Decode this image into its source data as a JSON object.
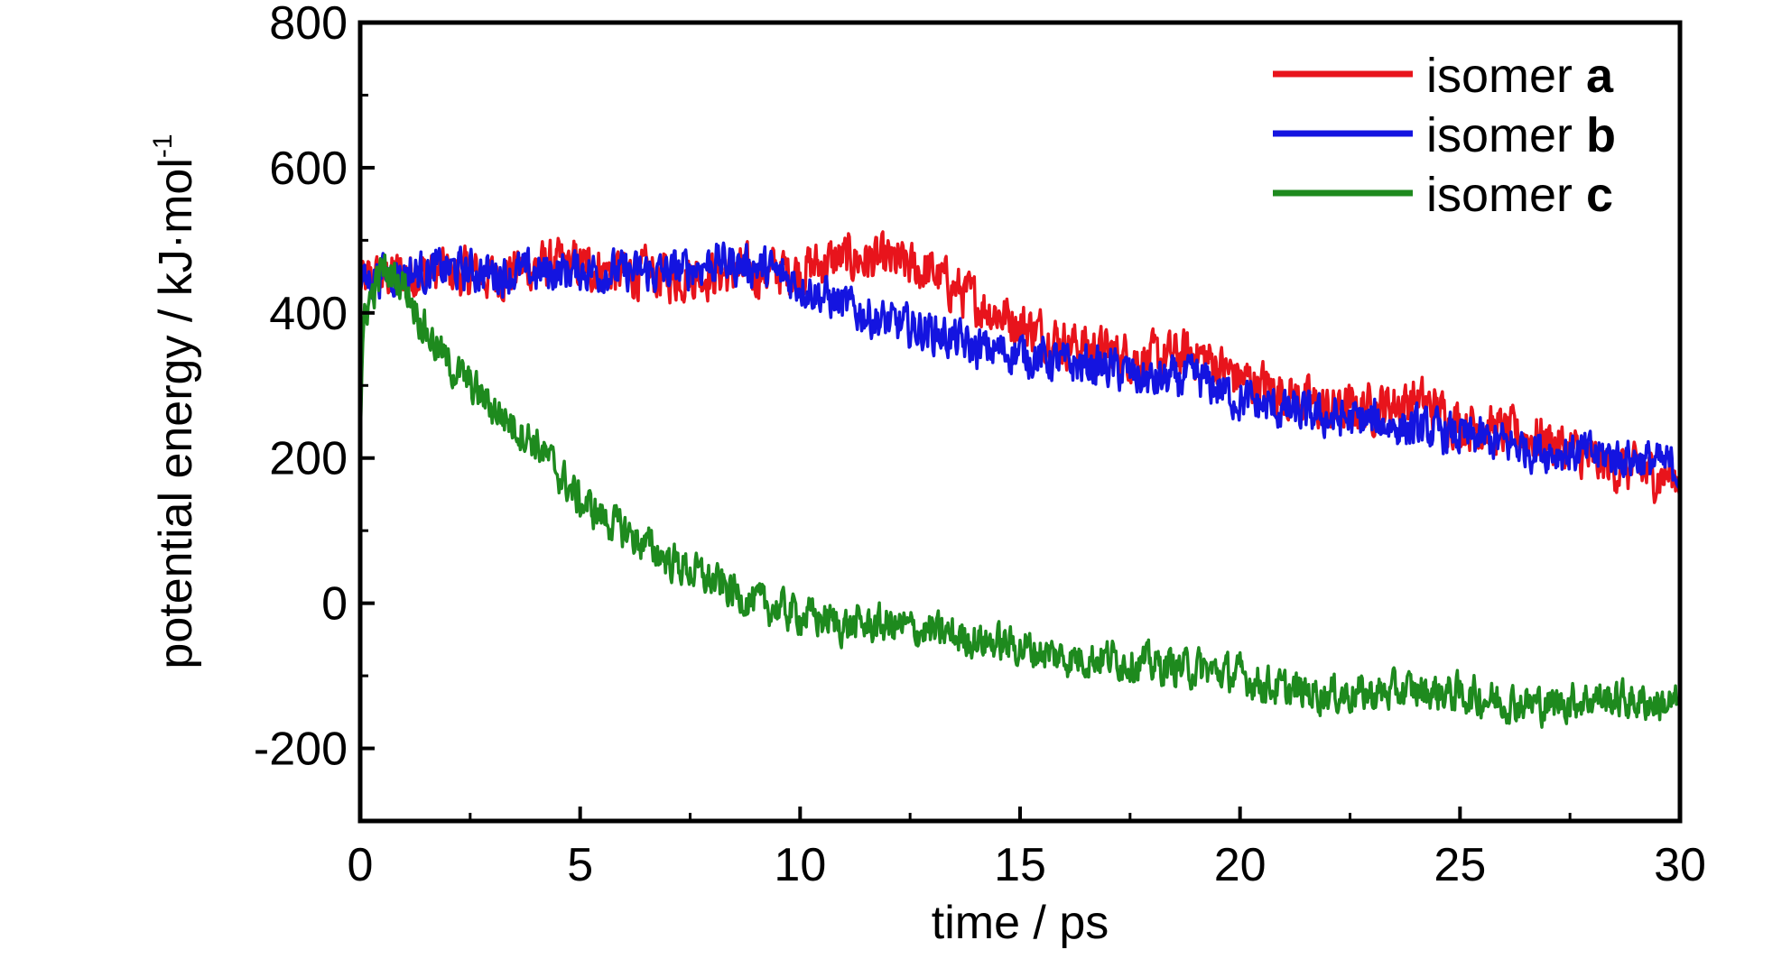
{
  "chart_data": {
    "type": "line",
    "title": "",
    "xlabel": "time / ps",
    "ylabel_main": "potential energy / kJ·mol",
    "ylabel_sup": "-1",
    "xlim": [
      0,
      30
    ],
    "ylim": [
      -300,
      800
    ],
    "xticks": [
      0,
      5,
      10,
      15,
      20,
      25,
      30
    ],
    "yticks": [
      -200,
      0,
      200,
      400,
      600,
      800
    ],
    "grid": false,
    "legend_position": "top-right",
    "series": [
      {
        "name": "isomer a",
        "name_prefix": "isomer ",
        "name_suffix": "a",
        "color": "#e8141c",
        "noise": 28,
        "x": [
          0,
          0.5,
          1,
          2,
          3,
          4,
          5,
          6,
          7,
          8,
          9,
          10,
          11,
          12,
          13,
          14,
          15,
          16,
          17,
          18,
          19,
          20,
          21,
          22,
          23,
          24,
          25,
          26,
          27,
          28,
          29,
          30
        ],
        "y": [
          440,
          450,
          455,
          455,
          450,
          465,
          465,
          455,
          450,
          455,
          455,
          460,
          475,
          470,
          455,
          415,
          385,
          360,
          345,
          335,
          345,
          310,
          290,
          265,
          270,
          280,
          250,
          235,
          225,
          195,
          180,
          175
        ]
      },
      {
        "name": "isomer b",
        "name_prefix": "isomer ",
        "name_suffix": "b",
        "color": "#1414e0",
        "noise": 24,
        "x": [
          0,
          0.5,
          1,
          2,
          3,
          4,
          5,
          6,
          7,
          8,
          9,
          10,
          11,
          12,
          13,
          14,
          15,
          16,
          17,
          18,
          19,
          20,
          21,
          22,
          23,
          24,
          25,
          26,
          27,
          28,
          29,
          30
        ],
        "y": [
          440,
          455,
          455,
          460,
          455,
          455,
          460,
          455,
          455,
          470,
          465,
          440,
          410,
          385,
          375,
          350,
          345,
          330,
          325,
          305,
          310,
          280,
          265,
          255,
          250,
          240,
          230,
          220,
          210,
          205,
          200,
          185
        ]
      },
      {
        "name": "isomer c",
        "name_prefix": "isomer ",
        "name_suffix": "c",
        "color": "#1e8a1e",
        "noise": 22,
        "x": [
          0,
          0.1,
          0.5,
          1,
          1.5,
          2,
          3,
          4,
          5,
          6,
          7,
          8,
          9,
          10,
          11,
          12,
          13,
          14,
          15,
          16,
          17,
          18,
          19,
          20,
          21,
          22,
          23,
          24,
          25,
          26,
          27,
          28,
          29,
          30
        ],
        "y": [
          230,
          400,
          460,
          440,
          375,
          330,
          270,
          220,
          140,
          100,
          60,
          30,
          0,
          -15,
          -30,
          -30,
          -40,
          -50,
          -60,
          -75,
          -75,
          -85,
          -90,
          -100,
          -120,
          -125,
          -125,
          -120,
          -125,
          -135,
          -140,
          -130,
          -135,
          -140
        ]
      }
    ]
  }
}
